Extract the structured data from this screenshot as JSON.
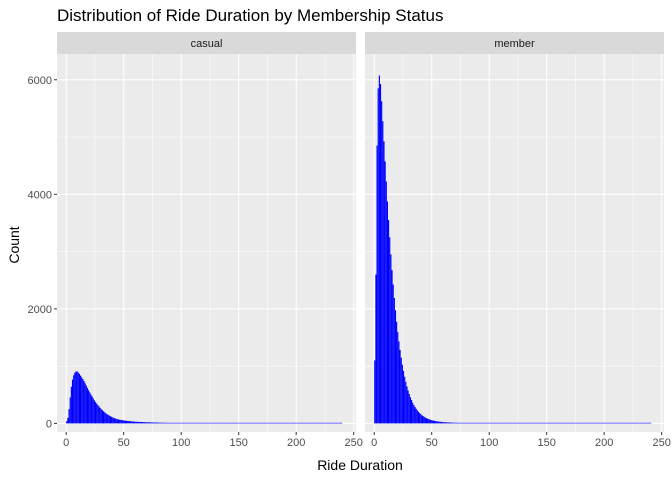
{
  "chart_data": {
    "type": "bar",
    "title": "Distribution of Ride Duration by Membership Status",
    "xlabel": "Ride Duration",
    "ylabel": "Count",
    "xlim": [
      -8,
      252
    ],
    "ylim": [
      -150,
      6450
    ],
    "x_ticks": [
      0,
      50,
      100,
      150,
      200,
      250
    ],
    "x_tick_labels": [
      "0",
      "50",
      "100",
      "150",
      "200",
      "250"
    ],
    "y_ticks": [
      0,
      2000,
      4000,
      6000
    ],
    "y_tick_labels": [
      "0",
      "2000",
      "4000",
      "6000"
    ],
    "grid": true,
    "legend": "none",
    "bar_color": "#0000ff",
    "panel_background": "#ebebeb",
    "strip_background": "#d9d9d9",
    "grid_color": "#ffffff",
    "bin_width": 1,
    "panels": [
      {
        "name": "casual",
        "x": [
          1,
          2,
          3,
          4,
          5,
          6,
          7,
          8,
          9,
          10,
          11,
          12,
          13,
          14,
          15,
          16,
          17,
          18,
          19,
          20,
          22,
          24,
          26,
          28,
          30,
          32,
          34,
          36,
          38,
          40,
          42,
          45,
          50,
          55,
          60,
          70,
          80,
          90,
          100,
          120,
          140,
          160,
          180,
          200,
          220,
          239
        ],
        "values": [
          40,
          150,
          350,
          560,
          720,
          810,
          870,
          900,
          915,
          900,
          880,
          850,
          820,
          790,
          760,
          720,
          680,
          640,
          600,
          560,
          490,
          420,
          360,
          310,
          260,
          220,
          185,
          155,
          130,
          110,
          90,
          70,
          52,
          40,
          30,
          20,
          14,
          10,
          8,
          5,
          3,
          2,
          2,
          1,
          1,
          0
        ]
      },
      {
        "name": "member",
        "x": [
          1,
          2,
          3,
          4,
          5,
          6,
          7,
          8,
          9,
          10,
          11,
          12,
          13,
          14,
          15,
          16,
          17,
          18,
          19,
          20,
          22,
          24,
          26,
          28,
          30,
          32,
          34,
          36,
          38,
          40,
          42,
          45,
          50,
          55,
          60,
          70,
          80,
          90,
          100,
          120,
          140,
          160,
          180,
          200,
          220,
          240
        ],
        "values": [
          1100,
          4100,
          5600,
          6100,
          6050,
          5800,
          5450,
          5100,
          4750,
          4400,
          4050,
          3700,
          3400,
          3100,
          2800,
          2550,
          2300,
          2080,
          1870,
          1680,
          1350,
          1080,
          860,
          680,
          540,
          430,
          340,
          270,
          215,
          170,
          135,
          95,
          55,
          35,
          22,
          12,
          8,
          5,
          3,
          2,
          1,
          1,
          0,
          0,
          0,
          0
        ]
      }
    ]
  }
}
